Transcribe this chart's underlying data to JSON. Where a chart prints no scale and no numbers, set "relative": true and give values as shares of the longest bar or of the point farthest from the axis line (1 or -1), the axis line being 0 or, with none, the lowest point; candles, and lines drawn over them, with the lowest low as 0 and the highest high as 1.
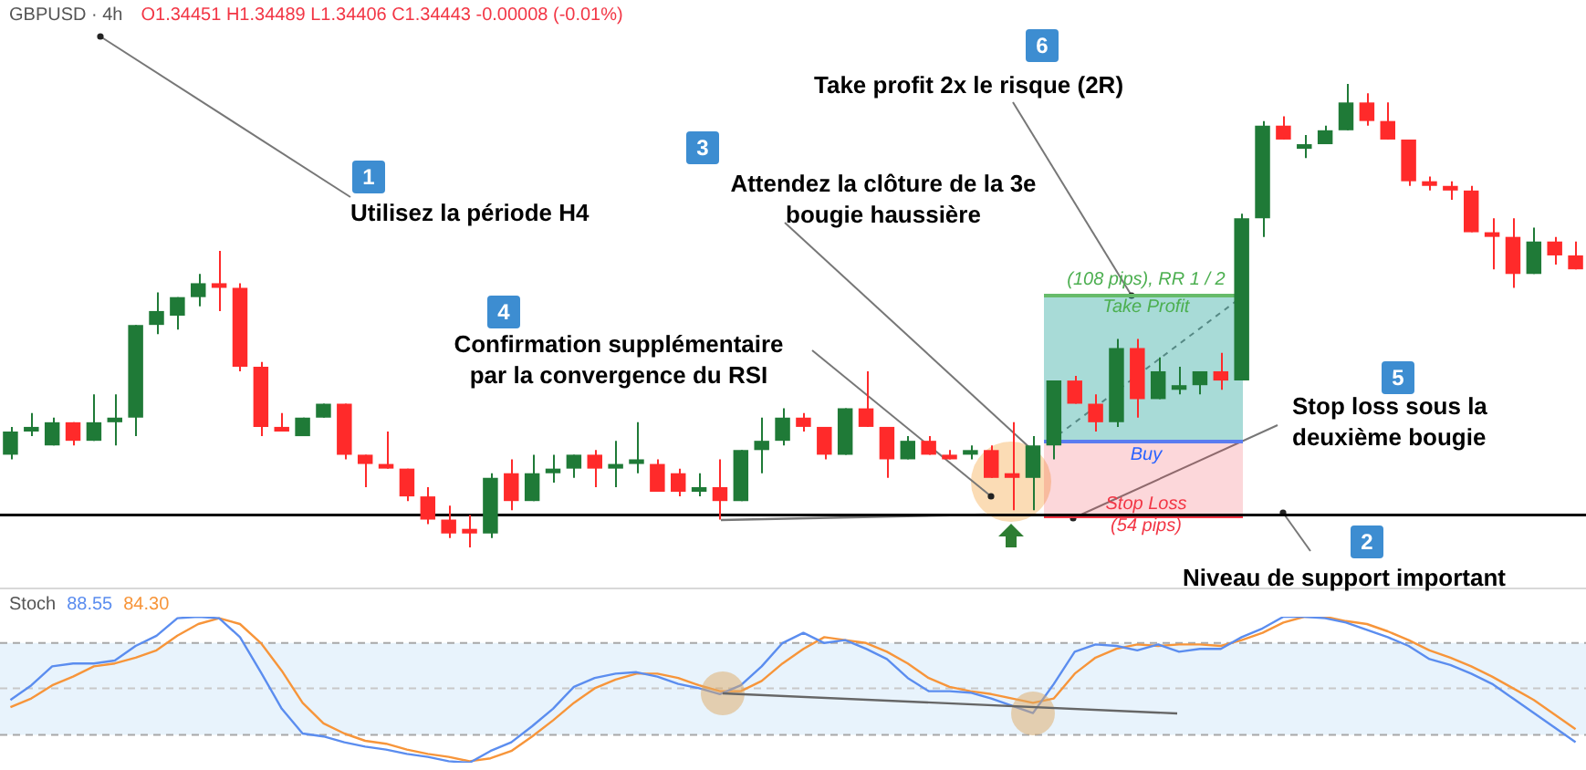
{
  "chart_data": [
    {
      "type": "candlestick",
      "title": "GBPUSD · 4h",
      "subtitle": "O1.34451 H1.34489 L1.34406 C1.34443 -0.00008 (-0.01%)",
      "relative": true,
      "categories": [
        null,
        null,
        null,
        null,
        null,
        null,
        null,
        null,
        null,
        null,
        null,
        null,
        null,
        null,
        null,
        null,
        null,
        null,
        null,
        null,
        null,
        null,
        null,
        null,
        null,
        null,
        null,
        null,
        null,
        null,
        null,
        null,
        null,
        null,
        null,
        null,
        null,
        null,
        null,
        null,
        null,
        null,
        null,
        null,
        null,
        null,
        null,
        null,
        null,
        null,
        null,
        null,
        null,
        null,
        null,
        null,
        null,
        null,
        null,
        null,
        null,
        null,
        null,
        null,
        null,
        null,
        null,
        null,
        null,
        null,
        null,
        null,
        null,
        null,
        null,
        null
      ],
      "ohlc": [
        [
          0.2,
          0.26,
          0.19,
          0.25
        ],
        [
          0.25,
          0.29,
          0.24,
          0.26
        ],
        [
          0.22,
          0.28,
          0.22,
          0.27
        ],
        [
          0.27,
          0.27,
          0.22,
          0.23
        ],
        [
          0.23,
          0.33,
          0.23,
          0.27
        ],
        [
          0.27,
          0.33,
          0.22,
          0.28
        ],
        [
          0.28,
          0.48,
          0.24,
          0.48
        ],
        [
          0.48,
          0.55,
          0.46,
          0.51
        ],
        [
          0.5,
          0.54,
          0.47,
          0.54
        ],
        [
          0.54,
          0.59,
          0.52,
          0.57
        ],
        [
          0.57,
          0.64,
          0.51,
          0.56
        ],
        [
          0.56,
          0.57,
          0.38,
          0.39
        ],
        [
          0.39,
          0.4,
          0.24,
          0.26
        ],
        [
          0.26,
          0.29,
          0.25,
          0.25
        ],
        [
          0.24,
          0.28,
          0.24,
          0.28
        ],
        [
          0.28,
          0.31,
          0.28,
          0.31
        ],
        [
          0.31,
          0.31,
          0.19,
          0.2
        ],
        [
          0.2,
          0.2,
          0.13,
          0.18
        ],
        [
          0.18,
          0.25,
          0.17,
          0.17
        ],
        [
          0.17,
          0.17,
          0.1,
          0.11
        ],
        [
          0.11,
          0.13,
          0.05,
          0.06
        ],
        [
          0.06,
          0.09,
          0.02,
          0.03
        ],
        [
          0.04,
          0.07,
          0,
          0.03
        ],
        [
          0.03,
          0.16,
          0.02,
          0.15
        ],
        [
          0.16,
          0.19,
          0.08,
          0.1
        ],
        [
          0.1,
          0.2,
          0.1,
          0.16
        ],
        [
          0.16,
          0.2,
          0.14,
          0.17
        ],
        [
          0.17,
          0.2,
          0.15,
          0.2
        ],
        [
          0.2,
          0.21,
          0.13,
          0.17
        ],
        [
          0.17,
          0.23,
          0.13,
          0.18
        ],
        [
          0.18,
          0.27,
          0.16,
          0.19
        ],
        [
          0.18,
          0.19,
          0.12,
          0.12
        ],
        [
          0.16,
          0.17,
          0.11,
          0.12
        ],
        [
          0.12,
          0.16,
          0.11,
          0.13
        ],
        [
          0.13,
          0.19,
          0.06,
          0.1
        ],
        [
          0.1,
          0.21,
          0.1,
          0.21
        ],
        [
          0.21,
          0.28,
          0.16,
          0.23
        ],
        [
          0.23,
          0.3,
          0.22,
          0.28
        ],
        [
          0.28,
          0.29,
          0.25,
          0.26
        ],
        [
          0.26,
          0.26,
          0.19,
          0.2
        ],
        [
          0.2,
          0.3,
          0.2,
          0.3
        ],
        [
          0.3,
          0.38,
          0.26,
          0.26
        ],
        [
          0.26,
          0.26,
          0.15,
          0.19
        ],
        [
          0.19,
          0.24,
          0.19,
          0.23
        ],
        [
          0.23,
          0.24,
          0.2,
          0.2
        ],
        [
          0.2,
          0.21,
          0.19,
          0.19
        ],
        [
          0.2,
          0.22,
          0.19,
          0.21
        ],
        [
          0.21,
          0.22,
          0.15,
          0.15
        ],
        [
          0.16,
          0.27,
          0.08,
          0.15
        ],
        [
          0.15,
          0.24,
          0.08,
          0.22
        ],
        [
          0.22,
          0.36,
          0.19,
          0.36
        ],
        [
          0.36,
          0.37,
          0.31,
          0.31
        ],
        [
          0.31,
          0.33,
          0.25,
          0.27
        ],
        [
          0.27,
          0.45,
          0.26,
          0.43
        ],
        [
          0.43,
          0.45,
          0.28,
          0.32
        ],
        [
          0.32,
          0.41,
          0.32,
          0.38
        ],
        [
          0.34,
          0.39,
          0.33,
          0.35
        ],
        [
          0.35,
          0.38,
          0.33,
          0.38
        ],
        [
          0.38,
          0.42,
          0.34,
          0.36
        ],
        [
          0.36,
          0.72,
          0.36,
          0.71
        ],
        [
          0.71,
          0.92,
          0.67,
          0.91
        ],
        [
          0.91,
          0.93,
          0.88,
          0.88
        ],
        [
          0.86,
          0.89,
          0.84,
          0.87
        ],
        [
          0.87,
          0.91,
          0.87,
          0.9
        ],
        [
          0.9,
          1,
          0.9,
          0.96
        ],
        [
          0.96,
          0.98,
          0.91,
          0.92
        ],
        [
          0.92,
          0.96,
          0.88,
          0.88
        ],
        [
          0.88,
          0.88,
          0.78,
          0.79
        ],
        [
          0.79,
          0.8,
          0.77,
          0.78
        ],
        [
          0.78,
          0.79,
          0.75,
          0.77
        ],
        [
          0.77,
          0.78,
          0.68,
          0.68
        ],
        [
          0.68,
          0.71,
          0.6,
          0.67
        ],
        [
          0.67,
          0.71,
          0.56,
          0.59
        ],
        [
          0.59,
          0.69,
          0.59,
          0.66
        ],
        [
          0.66,
          0.67,
          0.61,
          0.63
        ],
        [
          0.63,
          0.66,
          0.6,
          0.6
        ]
      ],
      "ref_lines": [
        {
          "axis": "y",
          "value": 0.07,
          "color": "#000000"
        }
      ],
      "annotations": [
        "1",
        "Utilisez la période H4",
        "2",
        "Niveau de support important",
        "3",
        "Attendez la clôture de la 3e bougie haussière",
        "4",
        "Confirmation supplémentaire par la convergence du RSI",
        "5",
        "Stop loss sous la deuxième bougie",
        "6",
        "Take profit 2x le risque (2R)",
        "(108 pips), RR 1 / 2",
        "Take Profit",
        "Buy",
        "Stop Loss",
        "(54 pips)"
      ]
    },
    {
      "type": "line",
      "title": "Stoch",
      "legend": "top left",
      "relative": true,
      "categories": [
        null,
        null,
        null,
        null,
        null,
        null,
        null,
        null,
        null,
        null,
        null,
        null,
        null,
        null,
        null,
        null,
        null,
        null,
        null,
        null,
        null,
        null,
        null,
        null,
        null,
        null,
        null,
        null,
        null,
        null,
        null,
        null,
        null,
        null,
        null,
        null,
        null,
        null,
        null,
        null,
        null,
        null,
        null,
        null,
        null,
        null,
        null,
        null,
        null,
        null,
        null,
        null,
        null,
        null,
        null,
        null,
        null,
        null,
        null,
        null,
        null,
        null,
        null,
        null,
        null,
        null,
        null,
        null,
        null,
        null,
        null,
        null,
        null,
        null,
        null,
        null
      ],
      "series": [
        {
          "name": "88.55",
          "color": "#5b8def",
          "values": [
            0.43,
            0.53,
            0.66,
            0.68,
            0.68,
            0.7,
            0.8,
            0.87,
            0.99,
            1,
            0.99,
            0.86,
            0.62,
            0.37,
            0.2,
            0.18,
            0.14,
            0.11,
            0.09,
            0.06,
            0.04,
            0.01,
            0,
            0.08,
            0.14,
            0.25,
            0.37,
            0.52,
            0.58,
            0.61,
            0.62,
            0.59,
            0.54,
            0.51,
            0.47,
            0.53,
            0.66,
            0.82,
            0.89,
            0.82,
            0.84,
            0.78,
            0.71,
            0.58,
            0.49,
            0.49,
            0.48,
            0.44,
            0.39,
            0.34,
            0.54,
            0.76,
            0.81,
            0.8,
            0.77,
            0.81,
            0.76,
            0.78,
            0.78,
            0.86,
            0.92,
            1,
            1,
            0.99,
            0.96,
            0.91,
            0.86,
            0.8,
            0.71,
            0.67,
            0.61,
            0.54,
            0.44,
            0.34,
            0.24,
            0.14
          ]
        },
        {
          "name": "84.30",
          "color": "#f7953a",
          "values": [
            0.38,
            0.44,
            0.53,
            0.59,
            0.66,
            0.68,
            0.72,
            0.77,
            0.87,
            0.95,
            0.99,
            0.95,
            0.82,
            0.63,
            0.41,
            0.27,
            0.2,
            0.15,
            0.13,
            0.09,
            0.06,
            0.04,
            0.01,
            0.03,
            0.08,
            0.18,
            0.29,
            0.41,
            0.51,
            0.57,
            0.61,
            0.61,
            0.58,
            0.53,
            0.49,
            0.49,
            0.56,
            0.68,
            0.78,
            0.86,
            0.84,
            0.82,
            0.76,
            0.68,
            0.58,
            0.52,
            0.49,
            0.47,
            0.44,
            0.41,
            0.44,
            0.61,
            0.72,
            0.78,
            0.81,
            0.8,
            0.81,
            0.81,
            0.8,
            0.84,
            0.89,
            0.96,
            1,
            1,
            0.97,
            0.95,
            0.9,
            0.84,
            0.77,
            0.72,
            0.66,
            0.59,
            0.51,
            0.43,
            0.33,
            0.23
          ]
        }
      ],
      "ref_lines": [
        {
          "axis": "y",
          "value": 0.82,
          "line_style": "dashed",
          "color": "#a8a8a8"
        },
        {
          "axis": "y",
          "value": 0.51,
          "line_style": "dashed",
          "color": "#c8c8c8"
        },
        {
          "axis": "y",
          "value": 0.19,
          "line_style": "dashed",
          "color": "#a8a8a8"
        }
      ],
      "bands": [
        {
          "axis": "y",
          "from": 0.19,
          "to": 0.82,
          "color": "#e8f3fc"
        }
      ]
    }
  ]
}
